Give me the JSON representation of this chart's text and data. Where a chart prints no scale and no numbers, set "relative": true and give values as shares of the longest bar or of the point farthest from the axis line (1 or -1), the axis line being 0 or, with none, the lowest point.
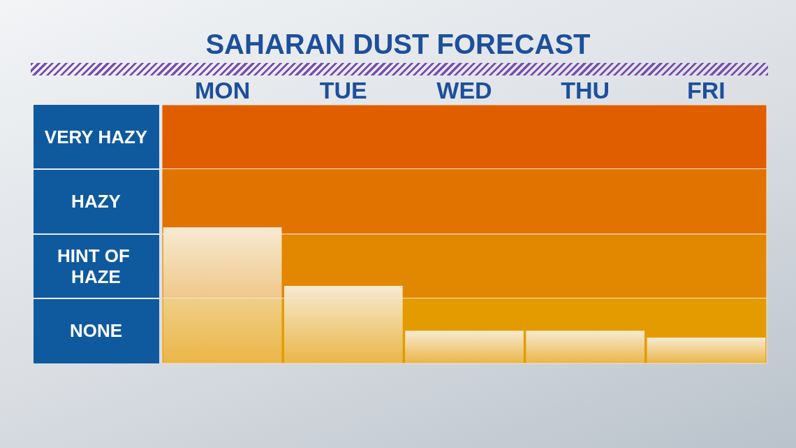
{
  "chart_data": {
    "type": "bar",
    "title": "SAHARAN DUST FORECAST",
    "categories": [
      "MON",
      "TUE",
      "WED",
      "THU",
      "FRI"
    ],
    "values": [
      1,
      0.57,
      0.24,
      0.24,
      0.19
    ],
    "relative": true,
    "color": "#f7ead2",
    "bands": [
      {
        "axis": "y",
        "from": 1.43,
        "to": 1.9,
        "label": "VERY HAZY",
        "color": "#e05e00"
      },
      {
        "axis": "y",
        "from": 0.95,
        "to": 1.43,
        "label": "HAZY",
        "color": "#e17300"
      },
      {
        "axis": "y",
        "from": 0.48,
        "to": 0.95,
        "label": "HINT OF HAZE",
        "color": "#e28700"
      },
      {
        "axis": "y",
        "from": 0,
        "to": 0.48,
        "label": "NONE",
        "color": "#e39b00"
      }
    ]
  }
}
